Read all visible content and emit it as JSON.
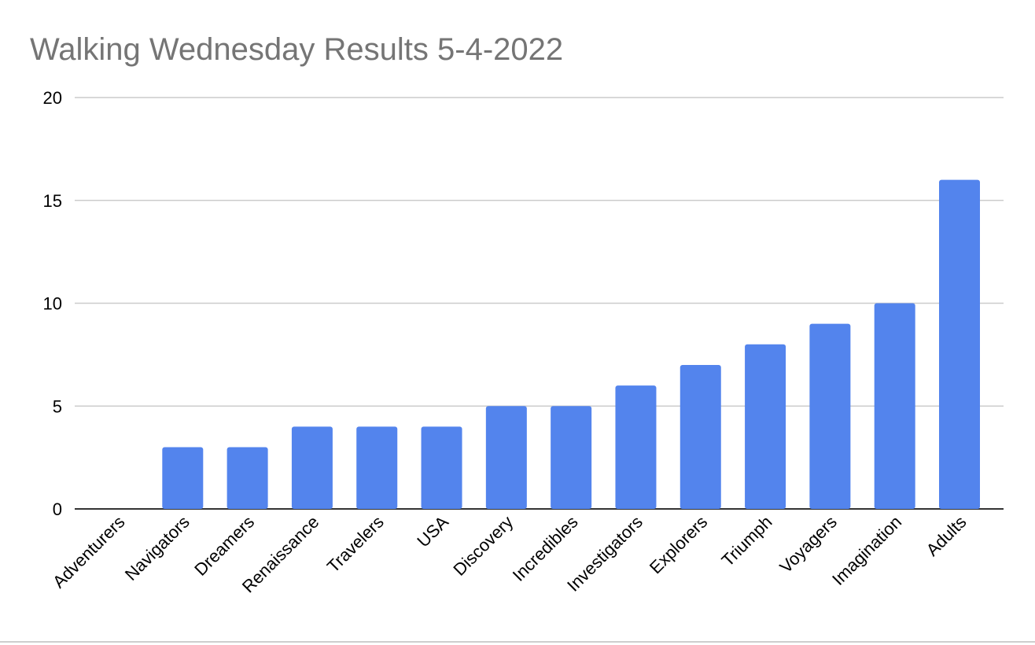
{
  "chart_data": {
    "type": "bar",
    "title": "Walking Wednesday Results 5-4-2022",
    "xlabel": "",
    "ylabel": "",
    "categories": [
      "Adventurers",
      "Navigators",
      "Dreamers",
      "Renaissance",
      "Travelers",
      "USA",
      "Discovery",
      "Incredibles",
      "Investigators",
      "Explorers",
      "Triumph",
      "Voyagers",
      "Imagination",
      "Adults"
    ],
    "values": [
      0,
      3,
      3,
      4,
      4,
      4,
      5,
      5,
      6,
      7,
      8,
      9,
      10,
      16
    ],
    "ylim": [
      0,
      20
    ],
    "yticks": [
      0,
      5,
      10,
      15,
      20
    ],
    "grid": true,
    "legend": "none",
    "colors": {
      "bar": "#5384ed",
      "title": "#757575",
      "grid": "#cccccc",
      "axis": "#333333"
    }
  }
}
